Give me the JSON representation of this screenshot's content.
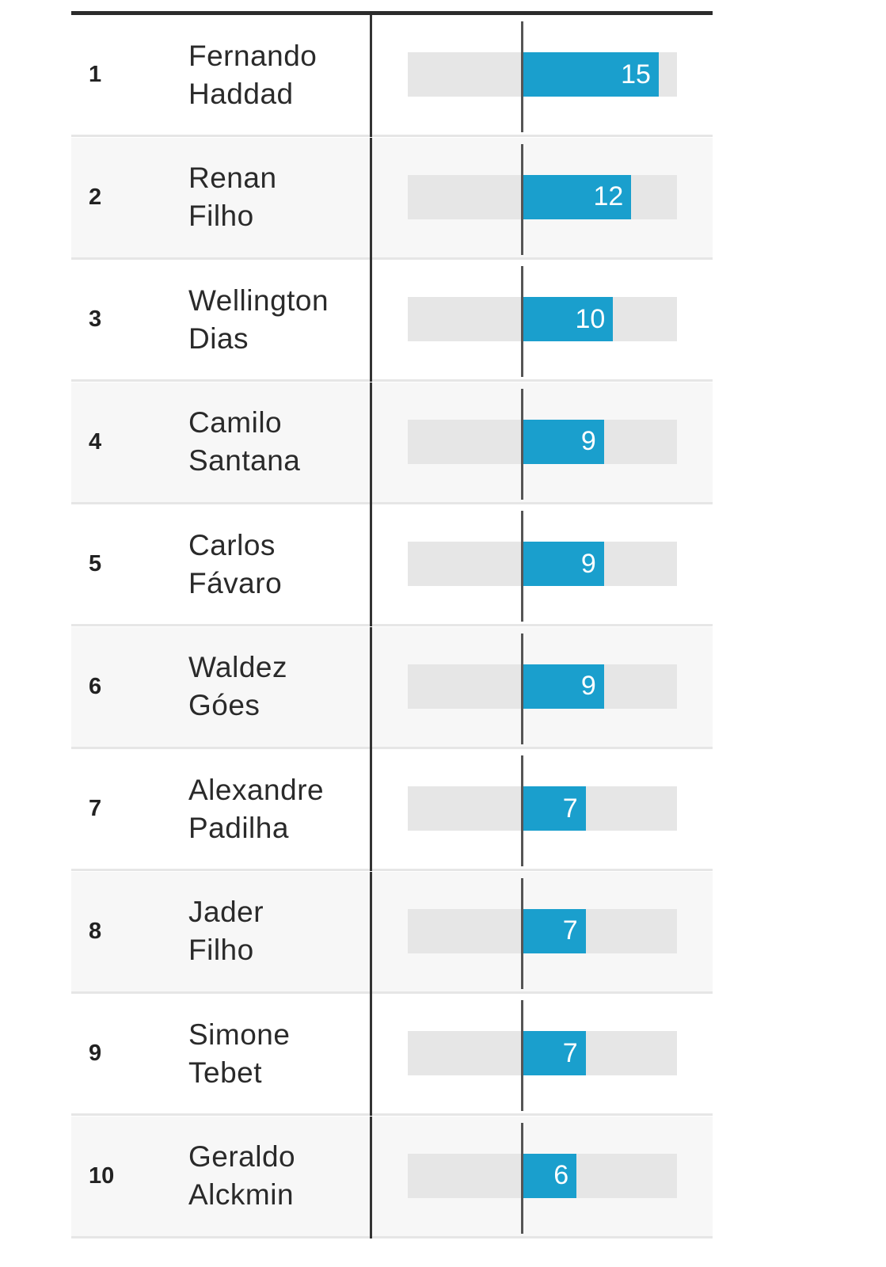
{
  "chart_data": {
    "type": "table",
    "columns": [
      "rank",
      "name",
      "value"
    ],
    "rows": [
      {
        "rank": "1",
        "name_line1": "Fernando",
        "name_line2": "Haddad",
        "value": 15
      },
      {
        "rank": "2",
        "name_line1": "Renan",
        "name_line2": "Filho",
        "value": 12
      },
      {
        "rank": "3",
        "name_line1": "Wellington",
        "name_line2": "Dias",
        "value": 10
      },
      {
        "rank": "4",
        "name_line1": "Camilo",
        "name_line2": "Santana",
        "value": 9
      },
      {
        "rank": "5",
        "name_line1": "Carlos",
        "name_line2": "Fávaro",
        "value": 9
      },
      {
        "rank": "6",
        "name_line1": "Waldez",
        "name_line2": "Góes",
        "value": 9
      },
      {
        "rank": "7",
        "name_line1": "Alexandre",
        "name_line2": "Padilha",
        "value": 7
      },
      {
        "rank": "8",
        "name_line1": "Jader",
        "name_line2": "Filho",
        "value": 7
      },
      {
        "rank": "9",
        "name_line1": "Simone",
        "name_line2": "Tebet",
        "value": 7
      },
      {
        "rank": "10",
        "name_line1": "Geraldo",
        "name_line2": "Alckmin",
        "value": 6
      }
    ],
    "value_range": [
      0,
      17
    ],
    "colors": {
      "bar": "#1a9fcd",
      "track": "#e6e6e6"
    }
  }
}
